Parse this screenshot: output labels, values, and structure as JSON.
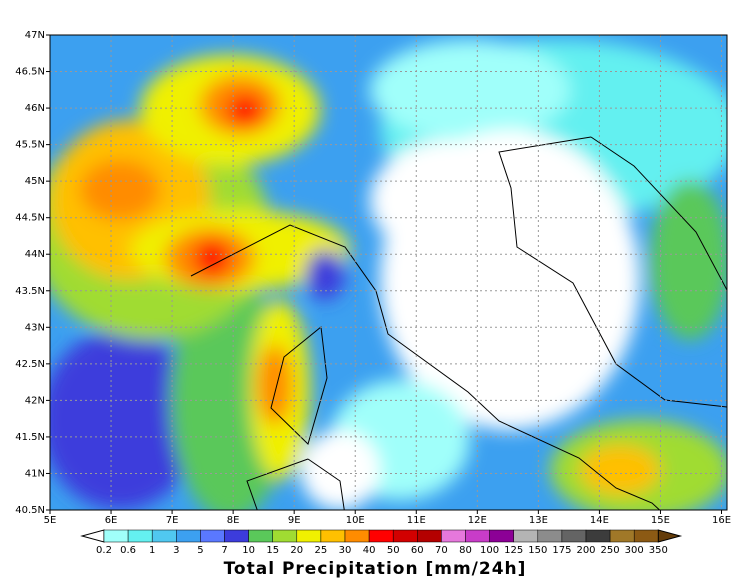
{
  "map": {
    "lat_ticks": [
      "47N",
      "46.5N",
      "46N",
      "45.5N",
      "45N",
      "44.5N",
      "44N",
      "43.5N",
      "43N",
      "42.5N",
      "42N",
      "41.5N",
      "41N",
      "40.5N"
    ],
    "lon_ticks": [
      "5E",
      "6E",
      "7E",
      "8E",
      "9E",
      "10E",
      "11E",
      "12E",
      "13E",
      "14E",
      "15E",
      "16E"
    ]
  },
  "colorbar": {
    "labels": [
      0.2,
      0.6,
      1,
      3,
      5,
      7,
      10,
      15,
      20,
      25,
      30,
      40,
      50,
      60,
      70,
      80,
      100,
      125,
      150,
      175,
      200,
      250,
      300,
      350
    ],
    "colors": [
      "#ffffff",
      "#a0fffa",
      "#64f0f0",
      "#50c8f0",
      "#3ca0f0",
      "#5a78ff",
      "#3c3cdc",
      "#5ac85a",
      "#a0dc32",
      "#f0f000",
      "#ffc000",
      "#ff8c00",
      "#ff0000",
      "#d20000",
      "#b40000",
      "#e678dc",
      "#c83cc8",
      "#8c0096",
      "#b4b4b4",
      "#8c8c8c",
      "#646464",
      "#3c3c3c",
      "#a07828",
      "#8c5a14",
      "#643c0a"
    ]
  },
  "title": "Total Precipitation [mm/24h]"
}
